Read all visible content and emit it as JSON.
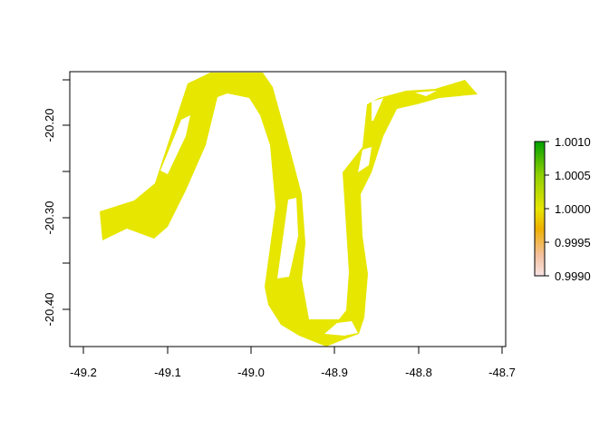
{
  "chart_data": {
    "type": "map",
    "x_ticks": [
      "-49.2",
      "-49.1",
      "-49.0",
      "-48.9",
      "-48.8",
      "-48.7"
    ],
    "y_ticks": [
      "-20.20",
      "-20.30",
      "-20.40"
    ],
    "legend_ticks": [
      "1.0010",
      "1.0005",
      "1.0000",
      "0.9995",
      "0.9990"
    ],
    "legend_range": [
      0.999,
      1.001
    ],
    "legend_placement": "right",
    "legend_colors": [
      "#f5d6d6",
      "#f0b070",
      "#e8c800",
      "#e6e600",
      "#a0d600",
      "#00a000"
    ],
    "fill_color": "#e6e600",
    "grid": false
  }
}
